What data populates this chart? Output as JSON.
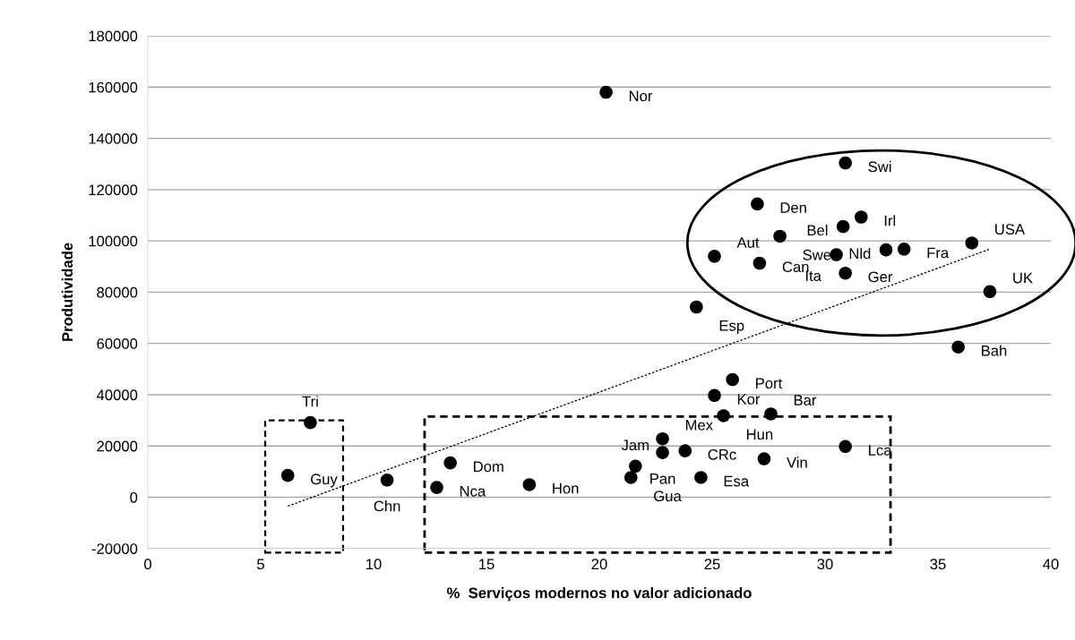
{
  "chart_data": {
    "type": "scatter",
    "xlabel": "%  Serviços modernos no valor adicionado",
    "ylabel": "Produtividade",
    "xlim": [
      0,
      40
    ],
    "xticks": [
      0,
      5,
      10,
      15,
      20,
      25,
      30,
      35,
      40
    ],
    "ylim": [
      -20000,
      180000
    ],
    "yticks": [
      -20000,
      0,
      20000,
      40000,
      60000,
      80000,
      100000,
      120000,
      140000,
      160000,
      180000
    ],
    "grid": "y",
    "marker": "circle",
    "series": [
      {
        "color": "#000000",
        "x": [
          20.3,
          30.9,
          27.0,
          31.6,
          30.8,
          28.0,
          36.5,
          32.7,
          33.5,
          25.1,
          30.5,
          27.1,
          30.9,
          37.3,
          24.3,
          35.9,
          25.9,
          25.1,
          25.5,
          27.6,
          22.8,
          22.8,
          23.8,
          30.9,
          27.3,
          21.6,
          21.4,
          24.5,
          7.2,
          6.2,
          10.6,
          13.4,
          12.8,
          16.9
        ],
        "values": [
          158000,
          130400,
          114400,
          109300,
          105600,
          101800,
          99200,
          96500,
          96800,
          94000,
          94600,
          91300,
          87400,
          80200,
          74200,
          58600,
          45900,
          39700,
          31800,
          32500,
          22800,
          17400,
          18100,
          19800,
          15000,
          12100,
          7700,
          7700,
          29100,
          8500,
          6700,
          13400,
          3800,
          4900
        ]
      },
      {
        "type": "line",
        "color": "#000000",
        "line_style": "dotted",
        "marker": "none",
        "x": [
          6.2,
          37.3
        ],
        "values": [
          -3500,
          96800
        ]
      }
    ],
    "annotations": [
      {
        "text": "Nor",
        "x": 20.3,
        "y": 158000
      },
      {
        "text": "Swi",
        "x": 30.9,
        "y": 130400
      },
      {
        "text": "Den",
        "x": 27.0,
        "y": 114400
      },
      {
        "text": "Irl",
        "x": 31.6,
        "y": 109300
      },
      {
        "text": "Bel",
        "x": 30.8,
        "y": 105600
      },
      {
        "text": "Swe",
        "x": 28.0,
        "y": 101800
      },
      {
        "text": "USA",
        "x": 36.5,
        "y": 99200
      },
      {
        "text": "Nld",
        "x": 32.7,
        "y": 96500
      },
      {
        "text": "Fra",
        "x": 33.5,
        "y": 96800
      },
      {
        "text": "Aut",
        "x": 25.1,
        "y": 94000
      },
      {
        "text": "Ita",
        "x": 30.5,
        "y": 94600
      },
      {
        "text": "Can",
        "x": 27.1,
        "y": 91300
      },
      {
        "text": "Ger",
        "x": 30.9,
        "y": 87400
      },
      {
        "text": "UK",
        "x": 37.3,
        "y": 80200
      },
      {
        "text": "Esp",
        "x": 24.3,
        "y": 74200
      },
      {
        "text": "Bah",
        "x": 35.9,
        "y": 58600
      },
      {
        "text": "Port",
        "x": 25.9,
        "y": 45900
      },
      {
        "text": "Kor",
        "x": 25.1,
        "y": 39700
      },
      {
        "text": "Hun",
        "x": 25.5,
        "y": 31800
      },
      {
        "text": "Bar",
        "x": 27.6,
        "y": 32500
      },
      {
        "text": "Mex",
        "x": 22.8,
        "y": 22800
      },
      {
        "text": "Pan",
        "x": 22.8,
        "y": 17400
      },
      {
        "text": "CRc",
        "x": 23.8,
        "y": 18100
      },
      {
        "text": "Lca",
        "x": 30.9,
        "y": 19800
      },
      {
        "text": "Vin",
        "x": 27.3,
        "y": 15000
      },
      {
        "text": "Jam",
        "x": 21.6,
        "y": 12100
      },
      {
        "text": "Gua",
        "x": 21.4,
        "y": 7700
      },
      {
        "text": "Esa",
        "x": 24.5,
        "y": 7700
      },
      {
        "text": "Tri",
        "x": 7.2,
        "y": 29100
      },
      {
        "text": "Guy",
        "x": 6.2,
        "y": 8500
      },
      {
        "text": "Chn",
        "x": 10.6,
        "y": 6700
      },
      {
        "text": "Dom",
        "x": 13.4,
        "y": 13400
      },
      {
        "text": "Nca",
        "x": 12.8,
        "y": 3800
      },
      {
        "text": "Hon",
        "x": 16.9,
        "y": 4900
      }
    ]
  }
}
